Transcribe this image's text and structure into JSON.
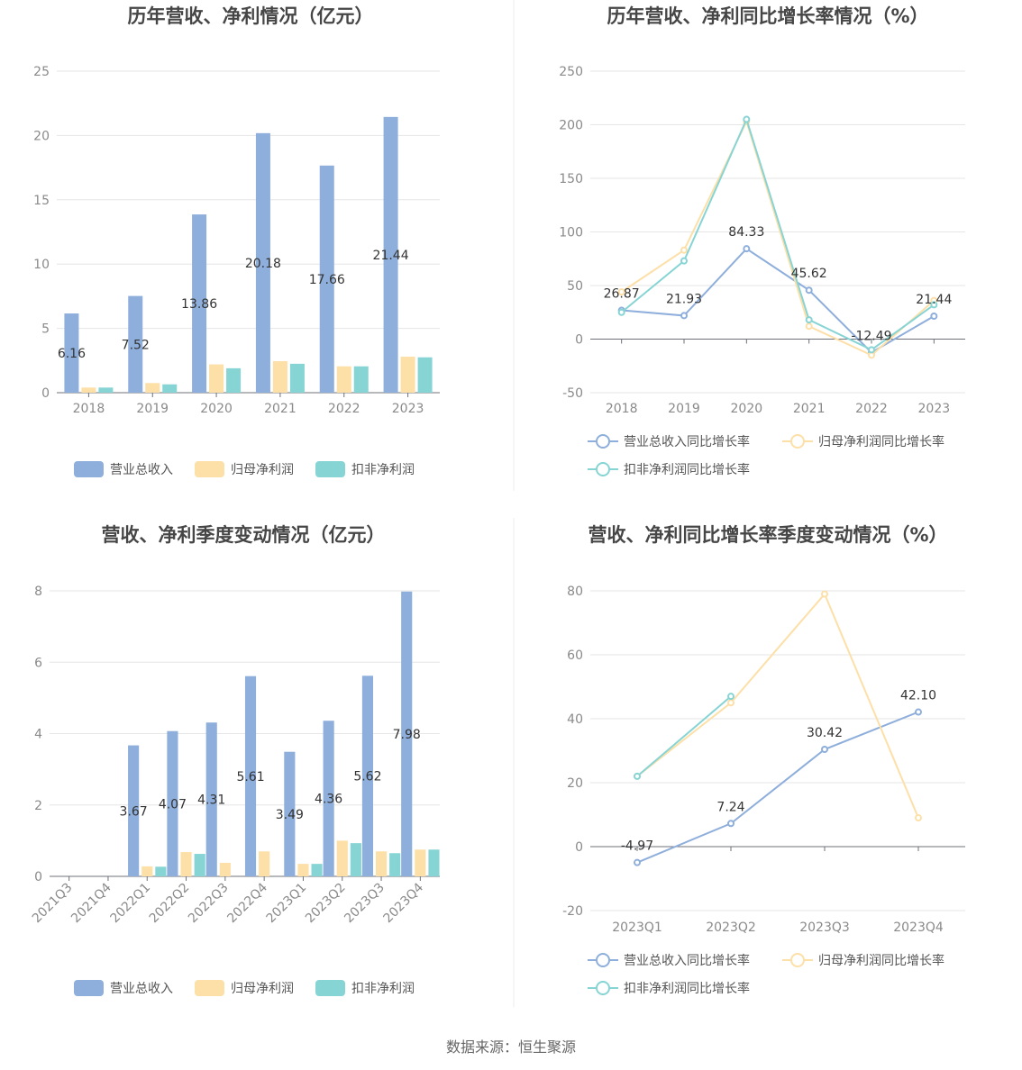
{
  "source_note": "数据来源：恒生聚源",
  "colors": {
    "revenue": "#8eaedb",
    "net": "#fddfa8",
    "deducted": "#87d4d4"
  },
  "chart_data": [
    {
      "id": "annual-bar",
      "type": "bar",
      "title": "历年营收、净利情况（亿元）",
      "categories": [
        "2018",
        "2019",
        "2020",
        "2021",
        "2022",
        "2023"
      ],
      "ylim": [
        0,
        25
      ],
      "yticks": [
        "0",
        "5",
        "10",
        "15",
        "20",
        "25"
      ],
      "series": [
        {
          "name": "营业总收入",
          "values": [
            6.16,
            7.52,
            13.86,
            20.18,
            17.66,
            21.44
          ],
          "labels": [
            "6.16",
            "7.52",
            "13.86",
            "20.18",
            "17.66",
            "21.44"
          ]
        },
        {
          "name": "归母净利润",
          "values": [
            0.4,
            0.75,
            2.2,
            2.45,
            2.05,
            2.8
          ]
        },
        {
          "name": "扣非净利润",
          "values": [
            0.4,
            0.65,
            1.9,
            2.25,
            2.05,
            2.75
          ]
        }
      ],
      "legend": "bottom"
    },
    {
      "id": "annual-line",
      "type": "line",
      "title": "历年营收、净利同比增长率情况（%）",
      "categories": [
        "2018",
        "2019",
        "2020",
        "2021",
        "2022",
        "2023"
      ],
      "ylim": [
        -50,
        250
      ],
      "yticks": [
        "-50",
        "0",
        "50",
        "100",
        "150",
        "200",
        "250"
      ],
      "series": [
        {
          "name": "营业总收入同比增长率",
          "values": [
            26.87,
            21.93,
            84.33,
            45.62,
            -12.49,
            21.44
          ],
          "labels": [
            "26.87",
            "21.93",
            "84.33",
            "45.62",
            "-12.49",
            "21.44"
          ]
        },
        {
          "name": "归母净利润同比增长率",
          "values": [
            44,
            83,
            203,
            12,
            -15,
            36
          ]
        },
        {
          "name": "扣非净利润同比增长率",
          "values": [
            25,
            73,
            205,
            18,
            -10,
            32
          ]
        }
      ],
      "legend": "bottom"
    },
    {
      "id": "quarter-bar",
      "type": "bar",
      "title": "营收、净利季度变动情况（亿元）",
      "categories": [
        "2021Q3",
        "2021Q4",
        "2022Q1",
        "2022Q2",
        "2022Q3",
        "2022Q4",
        "2023Q1",
        "2023Q2",
        "2023Q3",
        "2023Q4"
      ],
      "ylim": [
        0,
        8
      ],
      "yticks": [
        "0",
        "2",
        "4",
        "6",
        "8"
      ],
      "series": [
        {
          "name": "营业总收入",
          "values": [
            0,
            0,
            3.67,
            4.07,
            4.31,
            5.61,
            3.49,
            4.36,
            5.62,
            7.98
          ],
          "labels": [
            "",
            "",
            "3.67",
            "4.07",
            "4.31",
            "5.61",
            "3.49",
            "4.36",
            "5.62",
            "7.98"
          ]
        },
        {
          "name": "归母净利润",
          "values": [
            0,
            0,
            0.28,
            0.68,
            0.38,
            0.7,
            0.35,
            1.0,
            0.7,
            0.75
          ]
        },
        {
          "name": "扣非净利润",
          "values": [
            0,
            0,
            0.27,
            0.63,
            0,
            0,
            0.35,
            0.93,
            0.65,
            0.75
          ]
        }
      ],
      "legend": "bottom"
    },
    {
      "id": "quarter-line",
      "type": "line",
      "title": "营收、净利同比增长率季度变动情况（%）",
      "categories": [
        "2023Q1",
        "2023Q2",
        "2023Q3",
        "2023Q4"
      ],
      "ylim": [
        -20,
        80
      ],
      "yticks": [
        "-20",
        "0",
        "20",
        "40",
        "60",
        "80"
      ],
      "series": [
        {
          "name": "营业总收入同比增长率",
          "values": [
            -4.97,
            7.24,
            30.42,
            42.1
          ],
          "labels": [
            "-4.97",
            "7.24",
            "30.42",
            "42.10"
          ]
        },
        {
          "name": "归母净利润同比增长率",
          "values": [
            22,
            45,
            79,
            9
          ]
        },
        {
          "name": "扣非净利润同比增长率",
          "values": [
            22,
            47,
            null,
            null
          ]
        }
      ],
      "legend": "bottom"
    }
  ]
}
